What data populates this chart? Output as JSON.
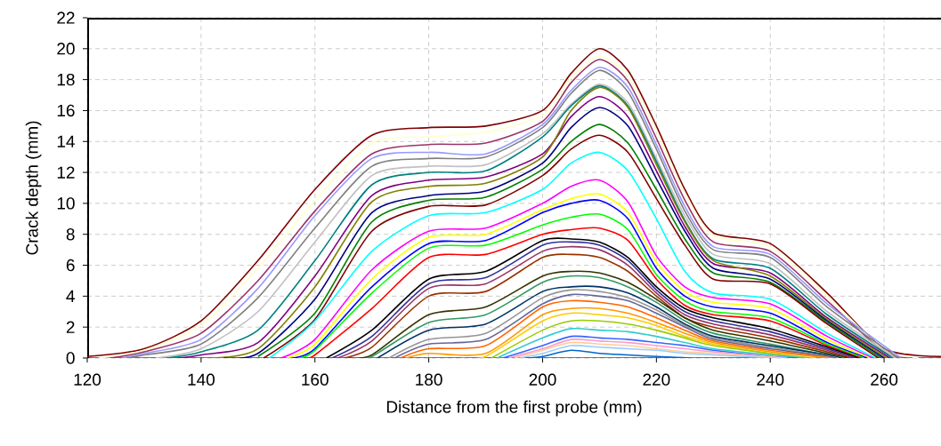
{
  "chart_data": {
    "type": "line",
    "xlabel": "Distance from the first probe (mm)",
    "ylabel": "Crack depth (mm)",
    "xlim": [
      120,
      270
    ],
    "ylim": [
      0,
      22
    ],
    "xticks": [
      120,
      140,
      160,
      180,
      200,
      220,
      240,
      260
    ],
    "yticks": [
      0,
      2,
      4,
      6,
      8,
      10,
      12,
      14,
      16,
      18,
      20,
      22
    ],
    "grid": true,
    "series": [
      {
        "color": "#800000",
        "x": [
          120,
          130,
          140,
          150,
          160,
          170,
          180,
          190,
          200,
          205,
          210,
          215,
          220,
          225,
          230,
          240,
          250,
          260,
          270
        ],
        "values": [
          0.1,
          0.6,
          2.4,
          6.3,
          10.9,
          14.4,
          14.9,
          15.0,
          16.0,
          18.4,
          20.0,
          18.6,
          15.0,
          10.9,
          8.1,
          7.4,
          4.2,
          0.6,
          0.1
        ]
      },
      {
        "color": "#ffffcc",
        "x": [
          122,
          130,
          140,
          150,
          160,
          170,
          180,
          190,
          200,
          205,
          210,
          215,
          220,
          225,
          230,
          240,
          250,
          260,
          266
        ],
        "values": [
          0,
          0.5,
          2.1,
          5.8,
          10.2,
          13.9,
          14.3,
          14.6,
          15.7,
          18.1,
          19.5,
          18.2,
          14.7,
          10.6,
          7.9,
          7.2,
          4.0,
          0.5,
          0
        ]
      },
      {
        "color": "#993366",
        "x": [
          124,
          130,
          140,
          150,
          160,
          170,
          180,
          190,
          200,
          205,
          210,
          215,
          220,
          225,
          230,
          240,
          250,
          260,
          265
        ],
        "values": [
          0,
          0.4,
          1.6,
          5.0,
          9.5,
          13.2,
          13.8,
          13.9,
          15.3,
          17.8,
          19.3,
          17.9,
          14.2,
          10.2,
          7.5,
          6.9,
          3.7,
          0.4,
          0
        ]
      },
      {
        "color": "#9999ff",
        "x": [
          126,
          130,
          140,
          150,
          160,
          170,
          180,
          190,
          200,
          205,
          210,
          215,
          220,
          225,
          230,
          240,
          250,
          263
        ],
        "values": [
          0,
          0.3,
          1.2,
          4.5,
          9.2,
          12.9,
          13.3,
          13.2,
          15.1,
          17.3,
          18.8,
          17.5,
          13.8,
          9.8,
          7.2,
          6.7,
          3.5,
          0
        ]
      },
      {
        "color": "#808080",
        "x": [
          127,
          130,
          140,
          150,
          160,
          170,
          180,
          190,
          200,
          205,
          210,
          215,
          220,
          225,
          230,
          240,
          250,
          262.5
        ],
        "values": [
          0,
          0.2,
          0.9,
          3.9,
          8.4,
          12.4,
          12.9,
          13.0,
          14.9,
          17.1,
          18.6,
          17.2,
          13.5,
          9.5,
          7.0,
          6.5,
          3.3,
          0
        ]
      },
      {
        "color": "#c0c0c0",
        "x": [
          132,
          140,
          150,
          160,
          170,
          180,
          190,
          200,
          205,
          210,
          215,
          220,
          225,
          230,
          240,
          250,
          262
        ],
        "values": [
          0,
          0.6,
          3.0,
          7.5,
          11.8,
          12.4,
          12.5,
          14.5,
          16.4,
          17.7,
          16.5,
          12.9,
          9.2,
          6.7,
          6.1,
          3.0,
          0
        ]
      },
      {
        "color": "#008080",
        "x": [
          134,
          140,
          150,
          160,
          170,
          180,
          190,
          200,
          205,
          210,
          215,
          220,
          225,
          230,
          240,
          250,
          261.5
        ],
        "values": [
          0,
          0.4,
          1.8,
          6.3,
          11.2,
          12.0,
          12.1,
          14.3,
          16.3,
          17.6,
          16.3,
          12.7,
          8.9,
          6.4,
          5.8,
          2.8,
          0
        ]
      },
      {
        "color": "#800080",
        "x": [
          136,
          140,
          150,
          160,
          170,
          180,
          190,
          200,
          205,
          210,
          215,
          220,
          225,
          230,
          240,
          250,
          261
        ],
        "values": [
          0,
          0.2,
          1.0,
          5.3,
          10.5,
          11.5,
          11.7,
          13.2,
          15.6,
          16.9,
          15.6,
          12.1,
          8.5,
          6.1,
          5.5,
          2.6,
          0
        ]
      },
      {
        "color": "#808000",
        "x": [
          142,
          150,
          160,
          170,
          180,
          190,
          200,
          205,
          210,
          215,
          220,
          225,
          230,
          240,
          250,
          260.5
        ],
        "values": [
          0,
          0.6,
          4.6,
          10.1,
          11.1,
          11.3,
          13.0,
          16.0,
          17.5,
          16.2,
          12.5,
          8.8,
          6.3,
          5.3,
          2.5,
          0
        ]
      },
      {
        "color": "#000080",
        "x": [
          144,
          150,
          160,
          170,
          180,
          190,
          200,
          205,
          210,
          215,
          220,
          225,
          230,
          240,
          250,
          260
        ],
        "values": [
          0,
          0.3,
          3.8,
          9.4,
          10.5,
          10.8,
          12.6,
          14.9,
          16.2,
          15.0,
          11.6,
          8.2,
          5.8,
          5.1,
          2.4,
          0
        ]
      },
      {
        "color": "#008000",
        "x": [
          150,
          160,
          170,
          180,
          190,
          200,
          205,
          210,
          215,
          220,
          225,
          230,
          240,
          250,
          259.5
        ],
        "values": [
          0.1,
          2.9,
          8.8,
          10.2,
          10.4,
          12.2,
          14.0,
          15.1,
          13.9,
          10.9,
          7.7,
          5.5,
          4.9,
          2.3,
          0
        ]
      },
      {
        "color": "#800000",
        "x": [
          151,
          160,
          170,
          180,
          190,
          200,
          205,
          210,
          215,
          220,
          225,
          230,
          240,
          250,
          259
        ],
        "values": [
          0,
          2.5,
          8.2,
          9.8,
          9.9,
          11.8,
          13.5,
          14.4,
          13.3,
          10.3,
          7.3,
          5.1,
          4.8,
          2.2,
          0
        ]
      },
      {
        "color": "#00ffff",
        "x": [
          152,
          160,
          170,
          180,
          190,
          200,
          205,
          210,
          215,
          220,
          225,
          230,
          240,
          250,
          258.5
        ],
        "values": [
          0,
          2.4,
          6.9,
          9.2,
          9.4,
          10.9,
          12.6,
          13.3,
          12.1,
          9.0,
          5.6,
          4.2,
          3.8,
          1.6,
          0
        ]
      },
      {
        "color": "#ff00ff",
        "x": [
          154,
          160,
          170,
          180,
          190,
          200,
          205,
          210,
          215,
          220,
          225,
          230,
          240,
          250,
          258
        ],
        "values": [
          0,
          1.2,
          5.7,
          8.2,
          8.4,
          10.0,
          11.1,
          11.5,
          10.1,
          6.6,
          4.6,
          3.9,
          3.5,
          1.4,
          0
        ]
      },
      {
        "color": "#ffff00",
        "x": [
          155,
          160,
          170,
          180,
          190,
          200,
          205,
          210,
          215,
          220,
          225,
          230,
          240,
          250,
          257.5
        ],
        "values": [
          0,
          0.9,
          5.1,
          7.8,
          8.0,
          9.6,
          10.3,
          10.6,
          9.4,
          6.2,
          4.3,
          3.6,
          3.2,
          1.2,
          0
        ]
      },
      {
        "color": "#0000ff",
        "x": [
          156,
          160,
          170,
          180,
          190,
          200,
          205,
          210,
          215,
          220,
          225,
          230,
          240,
          250,
          257
        ],
        "values": [
          0,
          0.6,
          4.6,
          7.4,
          7.6,
          9.4,
          10.0,
          10.2,
          9.0,
          5.8,
          4.0,
          3.3,
          2.9,
          1.0,
          0
        ]
      },
      {
        "color": "#00ff00",
        "x": [
          157,
          160,
          170,
          180,
          190,
          200,
          205,
          210,
          215,
          220,
          225,
          230,
          240,
          250,
          256.5
        ],
        "values": [
          0,
          0.5,
          4.2,
          7.1,
          7.3,
          8.6,
          9.1,
          9.3,
          8.3,
          5.4,
          3.7,
          3.0,
          2.6,
          0.9,
          0
        ]
      },
      {
        "color": "#ff0000",
        "x": [
          158,
          160,
          170,
          180,
          190,
          200,
          205,
          210,
          215,
          220,
          225,
          230,
          240,
          250,
          256
        ],
        "values": [
          0,
          0.2,
          3.2,
          6.5,
          6.7,
          8.0,
          8.3,
          8.4,
          7.6,
          5.1,
          3.4,
          2.8,
          2.4,
          0.8,
          0
        ]
      },
      {
        "color": "#000000",
        "x": [
          162,
          170,
          180,
          190,
          200,
          205,
          210,
          215,
          220,
          225,
          230,
          240,
          250,
          255.5
        ],
        "values": [
          0,
          1.8,
          5.1,
          5.6,
          7.6,
          7.7,
          7.5,
          6.5,
          4.6,
          3.2,
          2.6,
          1.9,
          0.7,
          0
        ]
      },
      {
        "color": "#333399",
        "x": [
          163,
          170,
          180,
          190,
          200,
          205,
          210,
          215,
          220,
          225,
          230,
          240,
          250,
          255
        ],
        "values": [
          0,
          1.4,
          4.8,
          5.2,
          7.3,
          7.5,
          7.3,
          6.3,
          4.4,
          3.0,
          2.4,
          1.7,
          0.6,
          0
        ]
      },
      {
        "color": "#993366",
        "x": [
          164,
          170,
          180,
          190,
          200,
          205,
          210,
          215,
          220,
          225,
          230,
          240,
          250,
          254.5
        ],
        "values": [
          0,
          1.1,
          4.5,
          4.8,
          6.9,
          7.2,
          7.0,
          6.0,
          4.2,
          2.8,
          2.2,
          1.5,
          0.5,
          0
        ]
      },
      {
        "color": "#993300",
        "x": [
          165,
          170,
          180,
          190,
          200,
          205,
          210,
          215,
          220,
          225,
          230,
          240,
          250,
          254
        ],
        "values": [
          0,
          0.7,
          4.0,
          4.3,
          6.5,
          6.7,
          6.5,
          5.6,
          4.0,
          2.6,
          2.0,
          1.3,
          0.4,
          0
        ]
      },
      {
        "color": "#333300",
        "x": [
          166,
          170,
          180,
          190,
          200,
          205,
          210,
          215,
          220,
          225,
          230,
          240,
          250,
          253.5
        ],
        "values": [
          0,
          0.2,
          2.8,
          3.3,
          5.3,
          5.6,
          5.5,
          4.9,
          3.8,
          2.6,
          1.8,
          1.1,
          0.3,
          0
        ]
      },
      {
        "color": "#339966",
        "x": [
          167,
          170,
          180,
          190,
          200,
          205,
          210,
          215,
          220,
          225,
          230,
          240,
          253
        ],
        "values": [
          0,
          0.1,
          2.3,
          2.8,
          4.9,
          5.3,
          5.2,
          4.6,
          3.6,
          2.4,
          1.6,
          0.9,
          0
        ]
      },
      {
        "color": "#003366",
        "x": [
          171,
          180,
          190,
          200,
          205,
          210,
          215,
          220,
          225,
          230,
          240,
          250,
          252.5
        ],
        "values": [
          0,
          1.8,
          2.2,
          4.3,
          4.6,
          4.6,
          4.2,
          3.3,
          2.2,
          1.4,
          0.8,
          0.2,
          0
        ]
      },
      {
        "color": "#969696",
        "x": [
          173,
          180,
          190,
          200,
          205,
          210,
          215,
          220,
          225,
          230,
          240,
          252
        ],
        "values": [
          0,
          1.2,
          1.6,
          3.9,
          4.4,
          4.3,
          3.9,
          3.1,
          2.1,
          1.3,
          0.7,
          0
        ]
      },
      {
        "color": "#666699",
        "x": [
          174,
          180,
          190,
          200,
          205,
          210,
          215,
          220,
          225,
          230,
          240,
          250,
          251.5
        ],
        "values": [
          0,
          0.9,
          1.2,
          3.5,
          4.1,
          4.0,
          3.7,
          2.9,
          2.0,
          1.2,
          0.6,
          0.1,
          0
        ]
      },
      {
        "color": "#ff6600",
        "x": [
          175,
          180,
          190,
          200,
          205,
          210,
          215,
          220,
          225,
          230,
          240,
          251
        ],
        "values": [
          0,
          0.6,
          0.8,
          3.3,
          3.7,
          3.6,
          3.3,
          2.6,
          1.8,
          1.1,
          0.5,
          0
        ]
      },
      {
        "color": "#ff9900",
        "x": [
          176,
          180,
          190,
          200,
          205,
          210,
          215,
          220,
          225,
          230,
          240,
          250.5
        ],
        "values": [
          0,
          0.3,
          0.3,
          2.8,
          3.2,
          3.2,
          2.9,
          2.3,
          1.6,
          1.0,
          0.4,
          0
        ]
      },
      {
        "color": "#ffcc00",
        "x": [
          186,
          190,
          200,
          205,
          210,
          215,
          220,
          225,
          230,
          240,
          248
        ],
        "values": [
          0,
          0.1,
          2.4,
          2.9,
          2.8,
          2.6,
          2.1,
          1.4,
          0.9,
          0.3,
          0
        ]
      },
      {
        "color": "#99cc00",
        "x": [
          191,
          200,
          205,
          210,
          215,
          220,
          225,
          230,
          246
        ],
        "values": [
          0,
          1.8,
          2.4,
          2.4,
          2.2,
          1.8,
          1.3,
          0.8,
          0
        ]
      },
      {
        "color": "#33cccc",
        "x": [
          192,
          200,
          205,
          210,
          215,
          220,
          225,
          230,
          240,
          247
        ],
        "values": [
          0,
          1.3,
          1.9,
          1.8,
          1.7,
          1.4,
          1.0,
          0.6,
          0.2,
          0
        ]
      },
      {
        "color": "#3366ff",
        "x": [
          193,
          200,
          205,
          210,
          215,
          220,
          225,
          230,
          240,
          245
        ],
        "values": [
          0,
          0.8,
          1.4,
          1.3,
          1.2,
          1.0,
          0.8,
          0.5,
          0.1,
          0
        ]
      },
      {
        "color": "#ff99cc",
        "x": [
          194,
          200,
          205,
          210,
          215,
          220,
          225,
          230,
          243
        ],
        "values": [
          0,
          0.6,
          1.2,
          1.1,
          1.0,
          0.8,
          0.6,
          0.4,
          0
        ]
      },
      {
        "color": "#ffcc99",
        "x": [
          195,
          200,
          205,
          210,
          215,
          220,
          225,
          230,
          242
        ],
        "values": [
          0,
          0.5,
          1.0,
          0.9,
          0.8,
          0.6,
          0.4,
          0.3,
          0
        ]
      },
      {
        "color": "#99ccff",
        "x": [
          196,
          200,
          205,
          210,
          215,
          220,
          225,
          230,
          241
        ],
        "values": [
          0,
          0.3,
          0.8,
          0.7,
          0.6,
          0.5,
          0.3,
          0.2,
          0
        ]
      },
      {
        "color": "#0066cc",
        "x": [
          197,
          200,
          205,
          210,
          215,
          220,
          226
        ],
        "values": [
          0,
          0.1,
          0.5,
          0.3,
          0.2,
          0.1,
          0
        ]
      }
    ]
  }
}
